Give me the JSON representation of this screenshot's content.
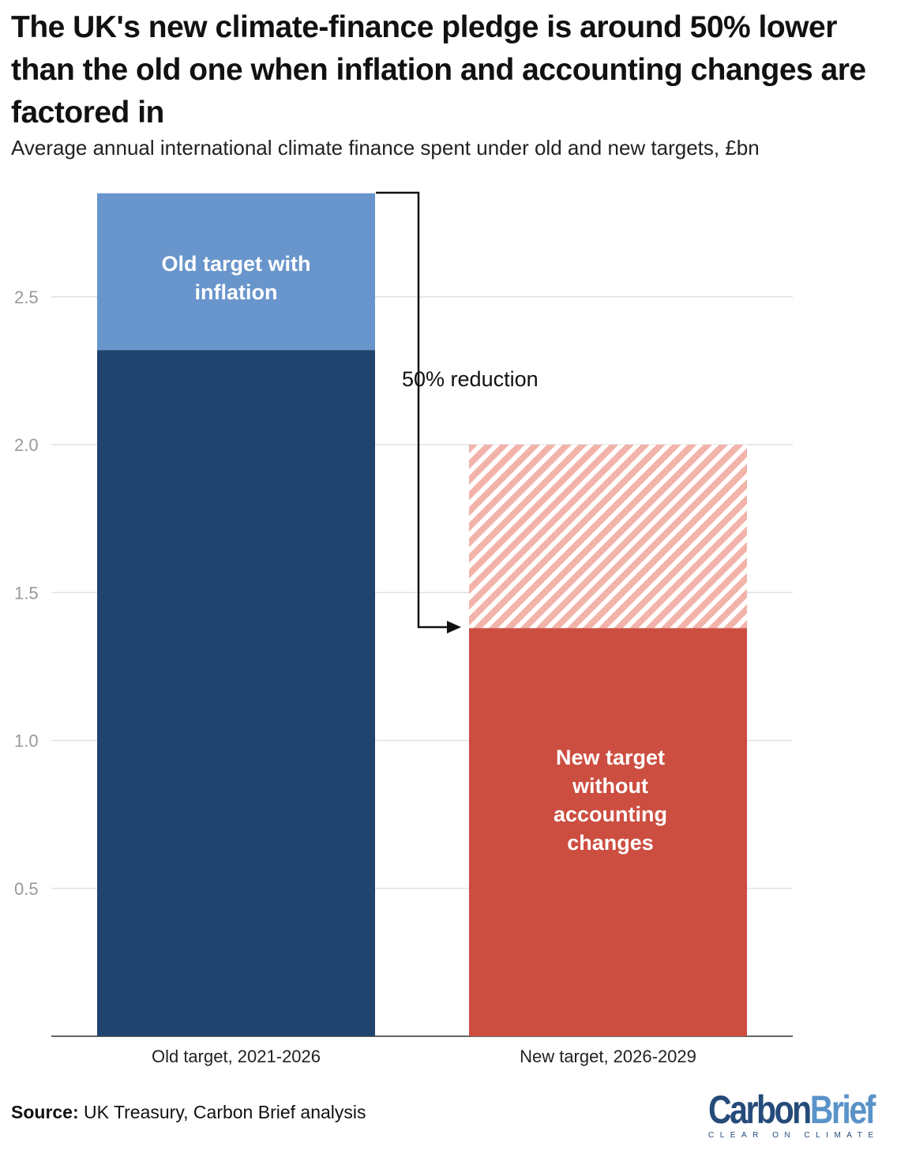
{
  "chart_data": {
    "type": "bar",
    "stacked": true,
    "title": "The UK's new climate-finance pledge is around 50% lower than the old one when inflation and accounting changes are factored in",
    "subtitle": "Average annual international climate finance spent under old and new targets, £bn",
    "categories": [
      "Old target, 2021-2026",
      "New target, 2026-2029"
    ],
    "series": [
      {
        "name": "",
        "values": [
          2.32,
          1.38
        ],
        "colors": [
          "#20446e",
          "#cc4e40"
        ]
      },
      {
        "name": "",
        "values": [
          0.53,
          0.62
        ],
        "colors": [
          "#6895cb",
          "#f2b3aa"
        ],
        "hatched": [
          false,
          true
        ]
      }
    ],
    "bar_labels": [
      "Old target with inflation",
      "New target without accounting changes"
    ],
    "annotation": "50% reduction",
    "ylim": [
      0,
      2.85
    ],
    "yticks": [
      0.5,
      1.0,
      1.5,
      2.0,
      2.5
    ],
    "ytick_labels": [
      "0.5",
      "1.0",
      "1.5",
      "2.0",
      "2.5"
    ],
    "grid": true
  },
  "source": {
    "label": "Source:",
    "text": " UK Treasury, Carbon Brief analysis"
  },
  "logo": {
    "part1": "Carbon",
    "part2": "Brief",
    "tagline": "CLEAR ON CLIMATE"
  }
}
